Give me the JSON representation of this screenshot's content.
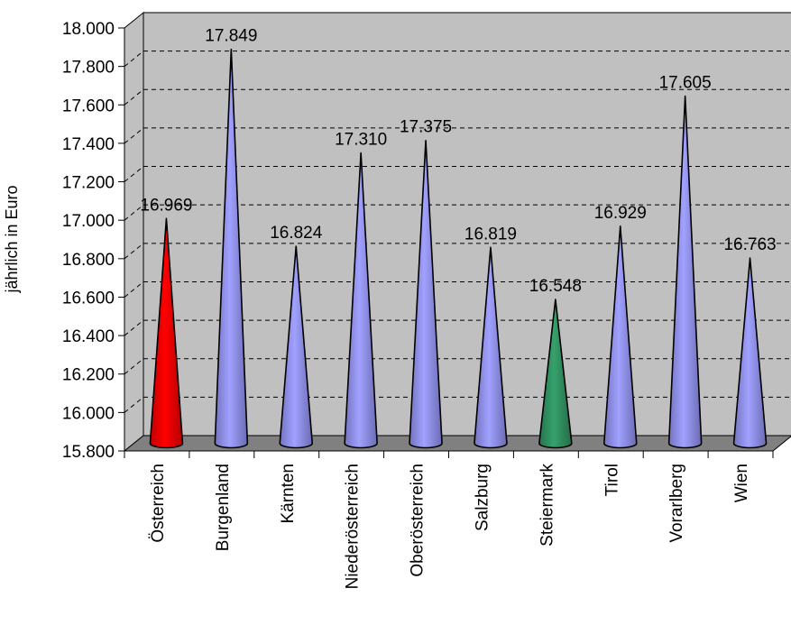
{
  "chart_data": {
    "type": "bar",
    "bar_shape": "cone",
    "ylabel": "jährlich in Euro",
    "ylim": [
      15800,
      18000
    ],
    "y_tick_step": 200,
    "y_ticks": [
      "15.800",
      "16.000",
      "16.200",
      "16.400",
      "16.600",
      "16.800",
      "17.000",
      "17.200",
      "17.400",
      "17.600",
      "17.800",
      "18.000"
    ],
    "categories": [
      "Österreich",
      "Burgenland",
      "Kärnten",
      "Niederösterreich",
      "Oberösterreich",
      "Salzburg",
      "Steiermark",
      "Tirol",
      "Vorarlberg",
      "Wien"
    ],
    "values": [
      16969,
      17849,
      16824,
      17310,
      17375,
      16819,
      16548,
      16929,
      17605,
      16763
    ],
    "value_labels": [
      "16.969",
      "17.849",
      "16.824",
      "17.310",
      "17.375",
      "16.819",
      "16.548",
      "16.929",
      "17.605",
      "16.763"
    ],
    "bar_colors": [
      "#ff0000",
      "#9999ff",
      "#9999ff",
      "#9999ff",
      "#9999ff",
      "#9999ff",
      "#339966",
      "#9999ff",
      "#9999ff",
      "#9999ff"
    ],
    "wall_color": "#c0c0c0",
    "floor_color": "#808080",
    "grid": true,
    "legend": "none"
  }
}
